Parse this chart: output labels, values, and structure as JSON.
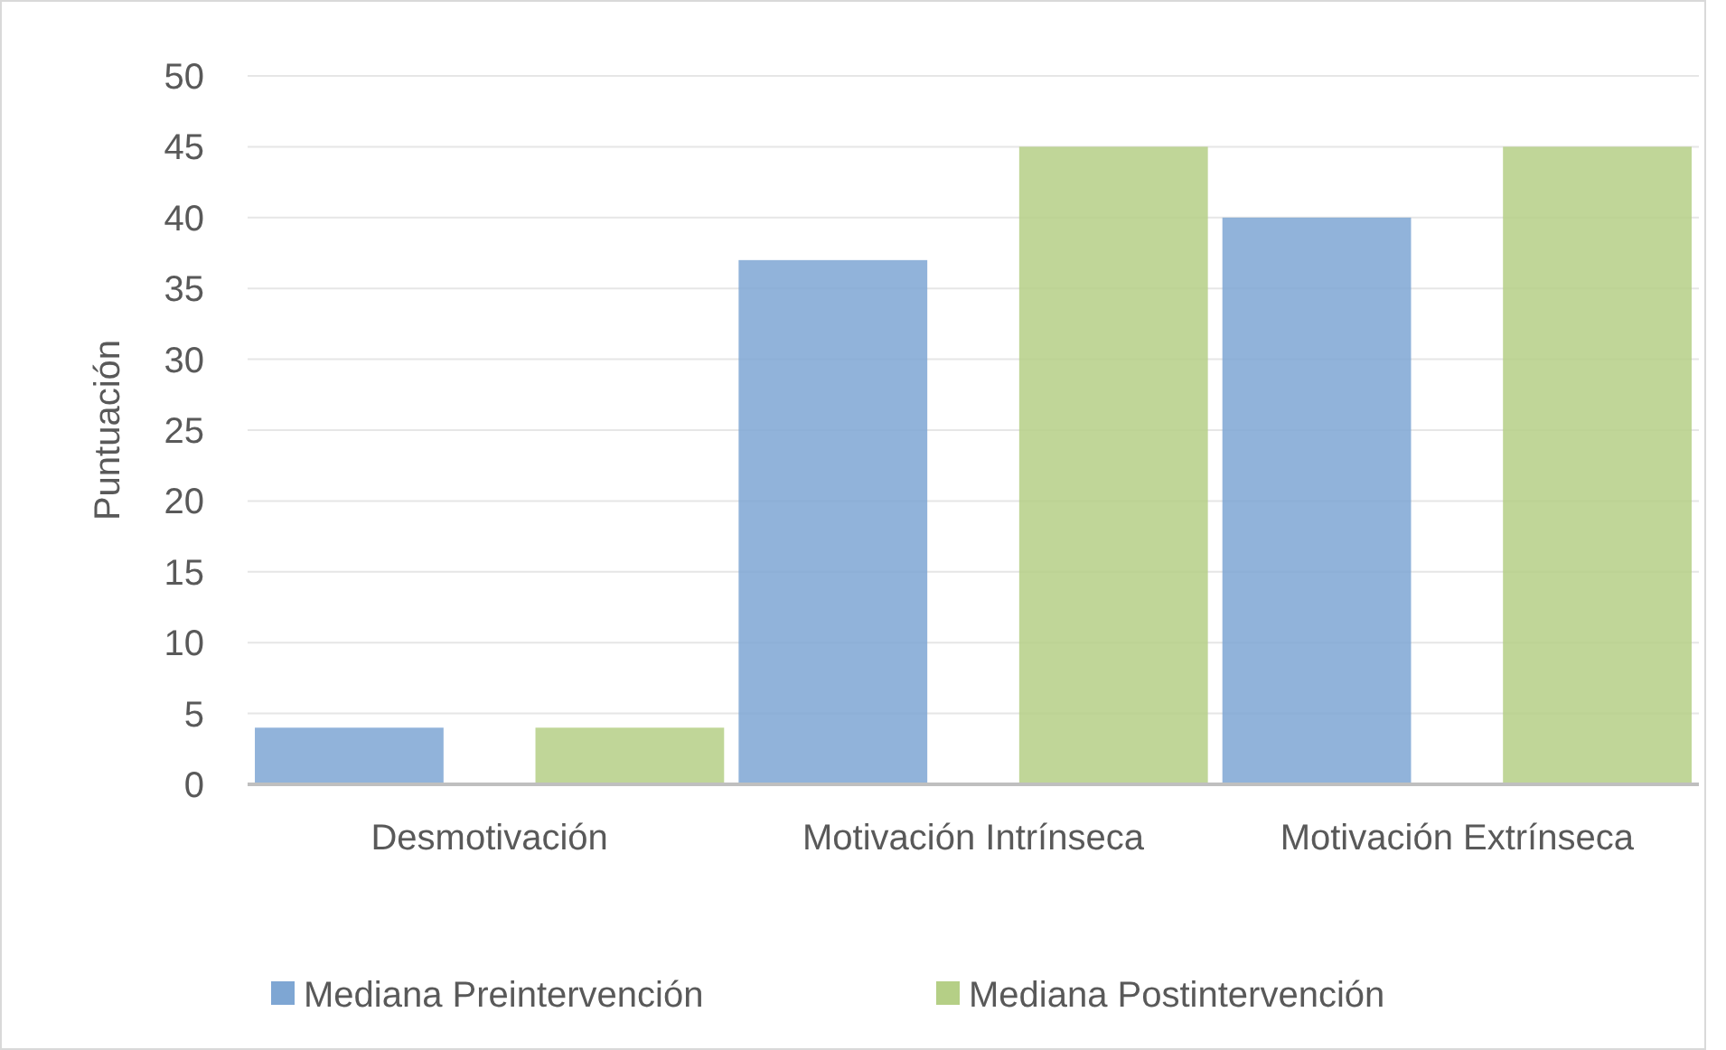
{
  "chart_data": {
    "type": "bar",
    "ylabel": "Puntuación",
    "categories": [
      "Desmotivación",
      "Motivación Intrínseca",
      "Motivación Extrínseca"
    ],
    "series": [
      {
        "name": "Mediana Preintervención",
        "color": "#7ea6d3",
        "values": [
          4,
          37,
          40
        ]
      },
      {
        "name": "Mediana Postintervención",
        "color": "#b5cf86",
        "values": [
          4,
          45,
          45
        ]
      }
    ],
    "ylim": [
      0,
      50
    ],
    "yticks": [
      0,
      5,
      10,
      15,
      20,
      25,
      30,
      35,
      40,
      45,
      50
    ],
    "grid": "y",
    "legend": "bottom"
  }
}
